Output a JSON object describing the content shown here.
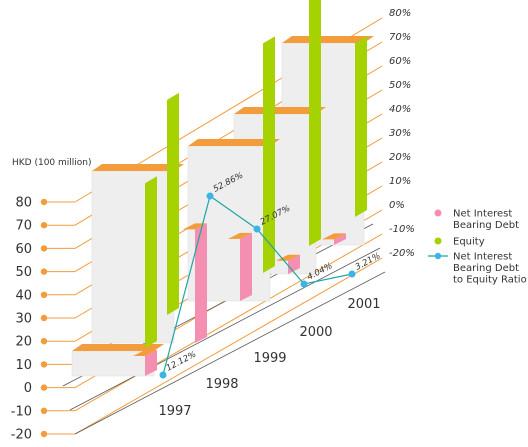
{
  "chart_data": {
    "type": "bar",
    "style": "3d",
    "categories": [
      "1997",
      "1998",
      "1999",
      "2000",
      "2001"
    ],
    "series": [
      {
        "name": "Net Interest Bearing Debt",
        "axis": "left",
        "color": "#f48fb1",
        "values": [
          8.6,
          49.0,
          26.8,
          5.7,
          2.4
        ]
      },
      {
        "name": "Equity",
        "axis": "left",
        "color": "#a5d200",
        "values": [
          71.0,
          92.7,
          99.0,
          141.0,
          75.0
        ]
      },
      {
        "name": "Net Interest Bearing Debt to Equity Ratio",
        "axis": "right",
        "color": "#1ea5a5",
        "marker_color": "#3cb4e6",
        "values": [
          12.12,
          52.86,
          27.07,
          4.04,
          3.21
        ]
      }
    ],
    "data_labels": [
      "12.12%",
      "52.86%",
      "27.07%",
      "4.04%",
      "3.21%"
    ],
    "left_axis": {
      "label": "HKD (100 million)",
      "ticks": [
        "80",
        "70",
        "60",
        "50",
        "40",
        "30",
        "20",
        "10",
        "0",
        "-10",
        "-20"
      ]
    },
    "right_axis": {
      "ticks": [
        "80%",
        "70%",
        "60%",
        "50%",
        "40%",
        "30%",
        "20%",
        "10%",
        "0%",
        "-10%",
        "-20%"
      ]
    },
    "box_top_color": "#f39c3c",
    "legend": {
      "position": "right",
      "items": [
        {
          "label_lines": [
            "Net Interest",
            "Bearing Debt"
          ],
          "icon": "pink-dot",
          "color": "#f48fb1"
        },
        {
          "label_lines": [
            "Equity"
          ],
          "icon": "green-dot",
          "color": "#a5d200"
        },
        {
          "label_lines": [
            "Net Interest",
            "Bearing Debt",
            "to Equity Ratio"
          ],
          "icon": "line-dot",
          "color": "#1ea5a5"
        }
      ]
    }
  }
}
